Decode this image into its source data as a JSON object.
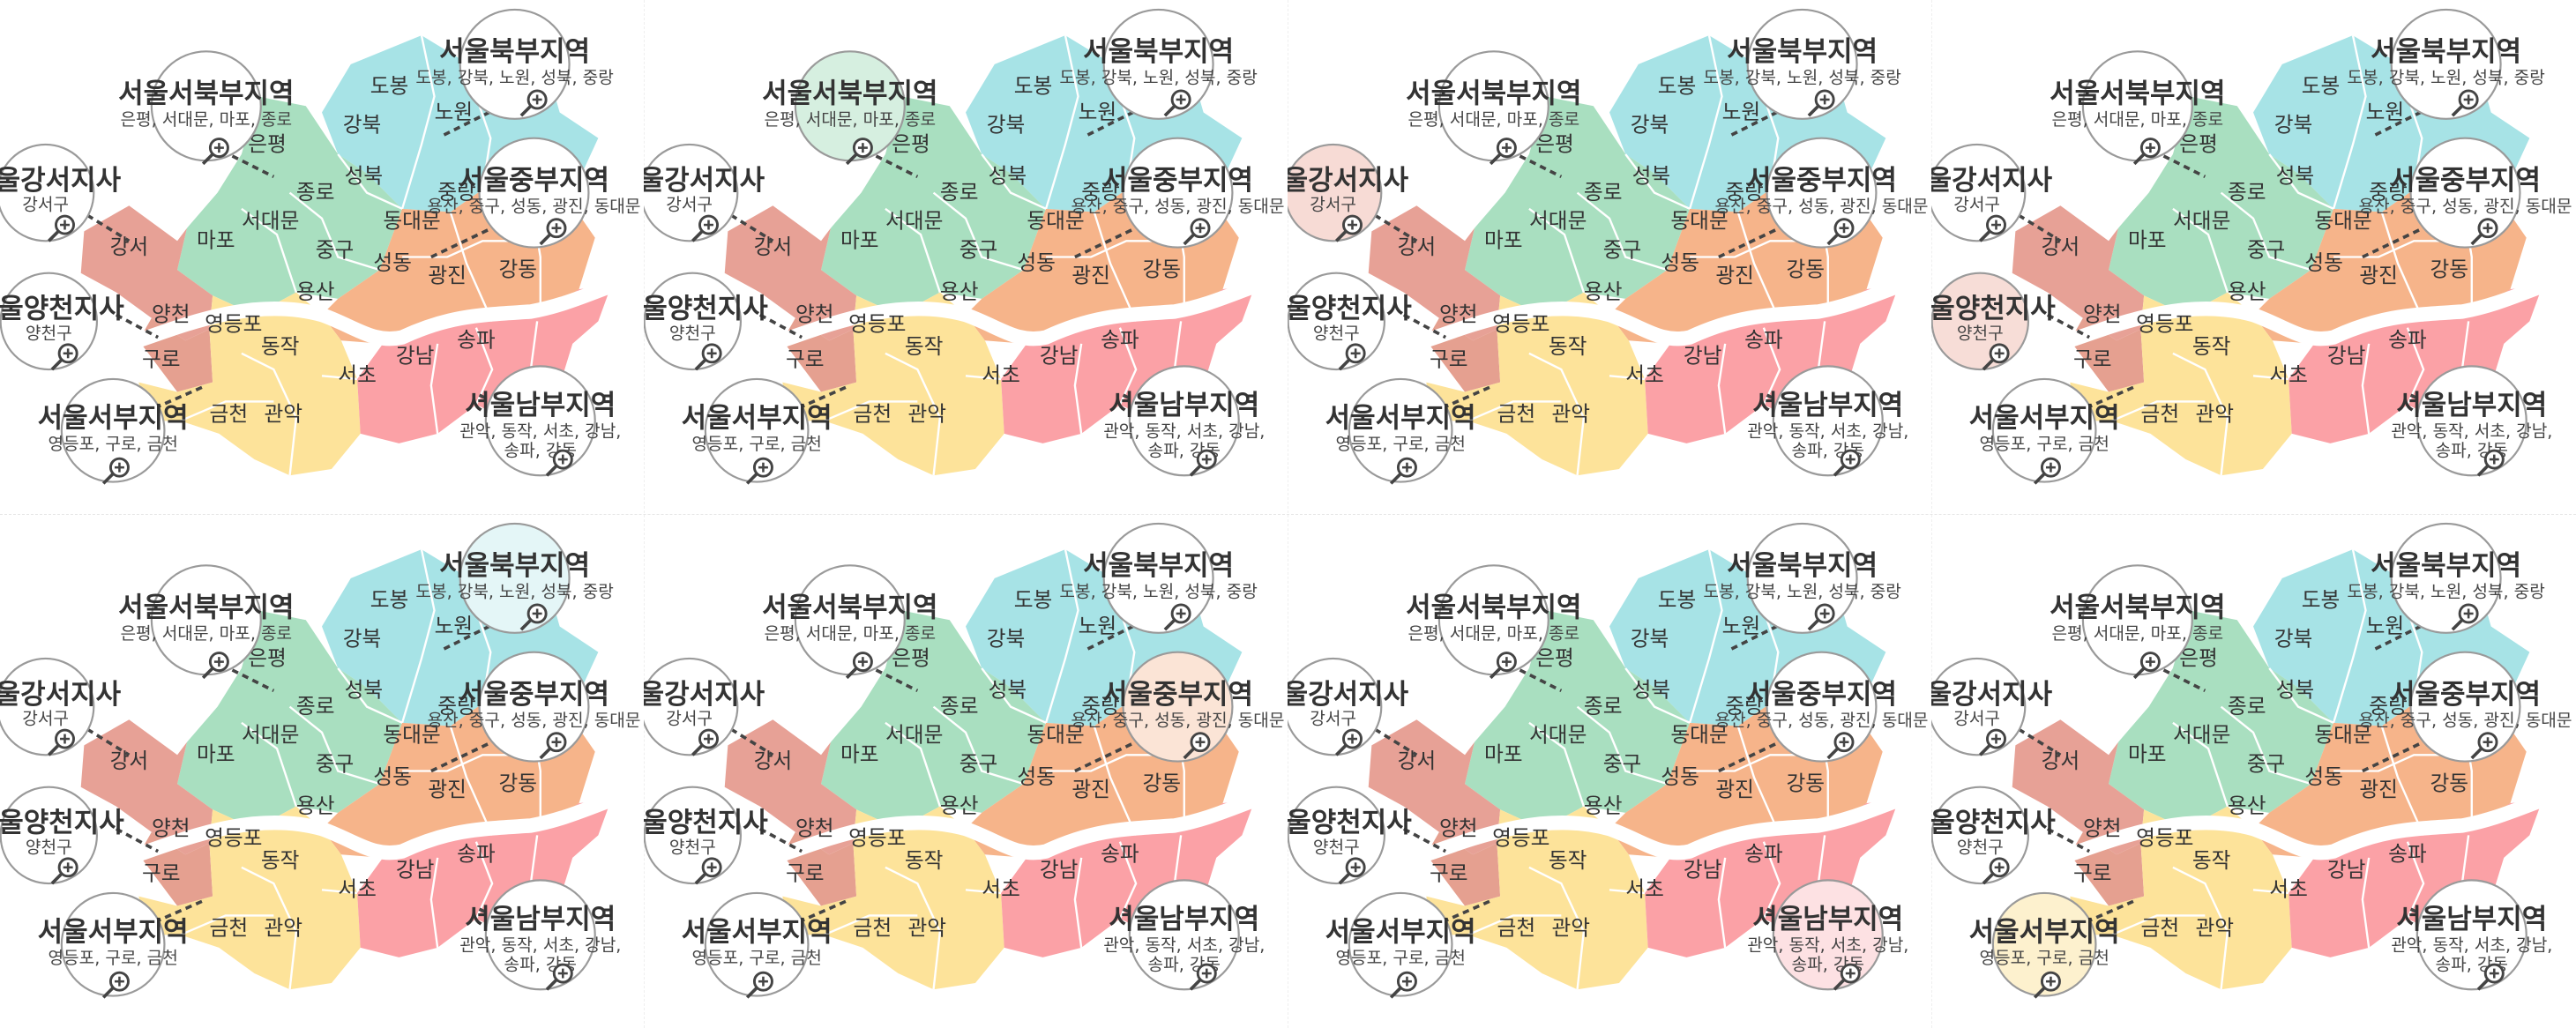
{
  "colors": {
    "northwest": "#a9dfc0",
    "north": "#a7e3e6",
    "center": "#f6b48a",
    "south": "#fba1a6",
    "southwest": "#fde39a",
    "gangseo": "#e7a196",
    "yangcheon": "#e5a090",
    "river": "#ffffff",
    "bubble_border": "#9a9a9a",
    "highlight_northwest": "#d6efe0",
    "highlight_north": "#e4f6f7",
    "highlight_center": "#fbe4d6",
    "highlight_south": "#fde1e3",
    "highlight_gangseo": "#f7dbd5",
    "highlight_yangcheon": "#f7ddd7",
    "highlight_southwest": "#fdf1ce"
  },
  "districts": {
    "dobong": "도봉",
    "nowon": "노원",
    "gangbuk": "강북",
    "eunpyeong": "은평",
    "seongbuk": "성북",
    "jongno": "종로",
    "seodaemun": "서대문",
    "mapo": "마포",
    "jungnang": "중랑",
    "dongdaemun": "동대문",
    "junggu": "중구",
    "seongdong": "성동",
    "yongsan": "용산",
    "gwangjin": "광진",
    "gangdong": "강동",
    "gangseo": "강서",
    "yangcheon": "양천",
    "yeongdeungpo": "영등포",
    "guro": "구로",
    "dongjak": "동작",
    "geumcheon": "금천",
    "gwanak": "관악",
    "seocho": "서초",
    "gangnam": "강남",
    "songpa": "송파"
  },
  "offices": {
    "northwest": {
      "title": "서울서북부지역",
      "sub": "은평, 서대문, 마포, 종로"
    },
    "north": {
      "title": "서울북부지역",
      "sub": "도봉, 강북, 노원, 성북, 중랑"
    },
    "gangseo": {
      "title": "서울강서지사",
      "sub": "강서구"
    },
    "center": {
      "title": "서울중부지역",
      "sub": "용산, 중구, 성동, 광진, 동대문"
    },
    "yangcheon": {
      "title": "서울양천지사",
      "sub": "양천구"
    },
    "southwest": {
      "title": "서울서부지역",
      "sub": "영등포, 구로, 금천"
    },
    "south": {
      "title": "서울남부지역",
      "sub1": "관악, 동작, 서초, 강남,",
      "sub2": "송파, 강동"
    }
  },
  "icons": {
    "zoom": "zoom-in-icon"
  },
  "panels": [
    {
      "highlight": "none"
    },
    {
      "highlight": "northwest"
    },
    {
      "highlight": "gangseo"
    },
    {
      "highlight": "yangcheon"
    },
    {
      "highlight": "north"
    },
    {
      "highlight": "center"
    },
    {
      "highlight": "south"
    },
    {
      "highlight": "southwest"
    }
  ]
}
